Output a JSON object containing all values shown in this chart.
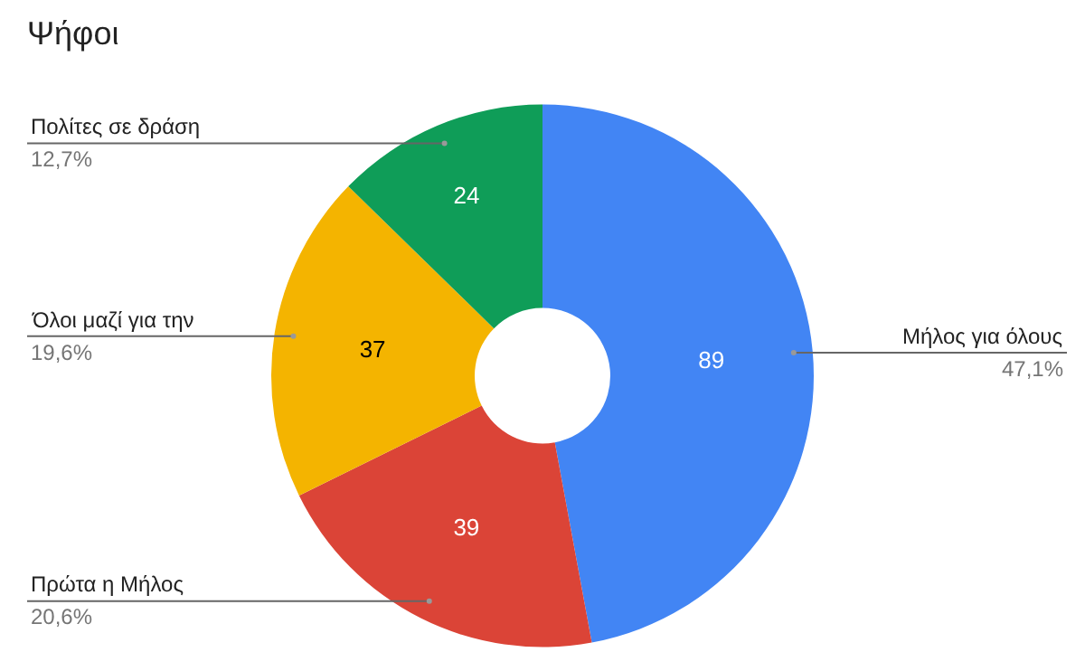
{
  "chart_data": {
    "type": "donut",
    "title": "Ψήφοι",
    "categories": [
      "Μήλος για όλους",
      "Πρώτα η Μήλος",
      "Όλοι μαζί για την",
      "Πολίτες σε δράση"
    ],
    "values": [
      89,
      39,
      37,
      24
    ],
    "colors": [
      "#4285f4",
      "#db4437",
      "#f4b400",
      "#0f9d58"
    ],
    "data_labels": true,
    "annotations": [
      "47,1%",
      "20,6%",
      "19,6%",
      "12,7%"
    ],
    "legend": false
  }
}
